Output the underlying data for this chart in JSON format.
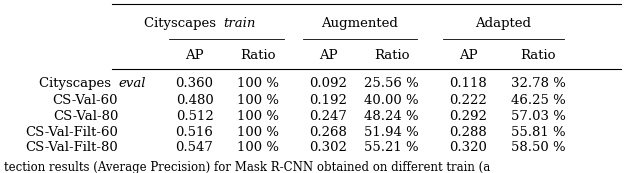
{
  "title": "",
  "caption": "tection results (Average Precision) for Mask R-CNN obtained on different train (a",
  "col_groups": [
    {
      "label": "Cityscapes ",
      "italic": "train",
      "span": [
        1,
        2
      ]
    },
    {
      "label": "Augmented",
      "italic": "",
      "span": [
        3,
        4
      ]
    },
    {
      "label": "Adapted",
      "italic": "",
      "span": [
        5,
        6
      ]
    }
  ],
  "col_headers": [
    "",
    "AP",
    "Ratio",
    "AP",
    "Ratio",
    "AP",
    "Ratio"
  ],
  "rows": [
    [
      "Cityscapes ",
      "eval",
      "0.360",
      "100 %",
      "0.092",
      "25.56 %",
      "0.118",
      "32.78 %"
    ],
    [
      "CS-Val-60",
      "",
      "0.480",
      "100 %",
      "0.192",
      "40.00 %",
      "0.222",
      "46.25 %"
    ],
    [
      "CS-Val-80",
      "",
      "0.512",
      "100 %",
      "0.247",
      "48.24 %",
      "0.292",
      "57.03 %"
    ],
    [
      "CS-Val-Filt-60",
      "",
      "0.516",
      "100 %",
      "0.268",
      "51.94 %",
      "0.288",
      "55.81 %"
    ],
    [
      "CS-Val-Filt-80",
      "",
      "0.547",
      "100 %",
      "0.302",
      "55.21 %",
      "0.320",
      "58.50 %"
    ]
  ],
  "bg_color": "#ffffff",
  "text_color": "#000000",
  "fontsize": 9.5,
  "caption_fontsize": 8.5
}
